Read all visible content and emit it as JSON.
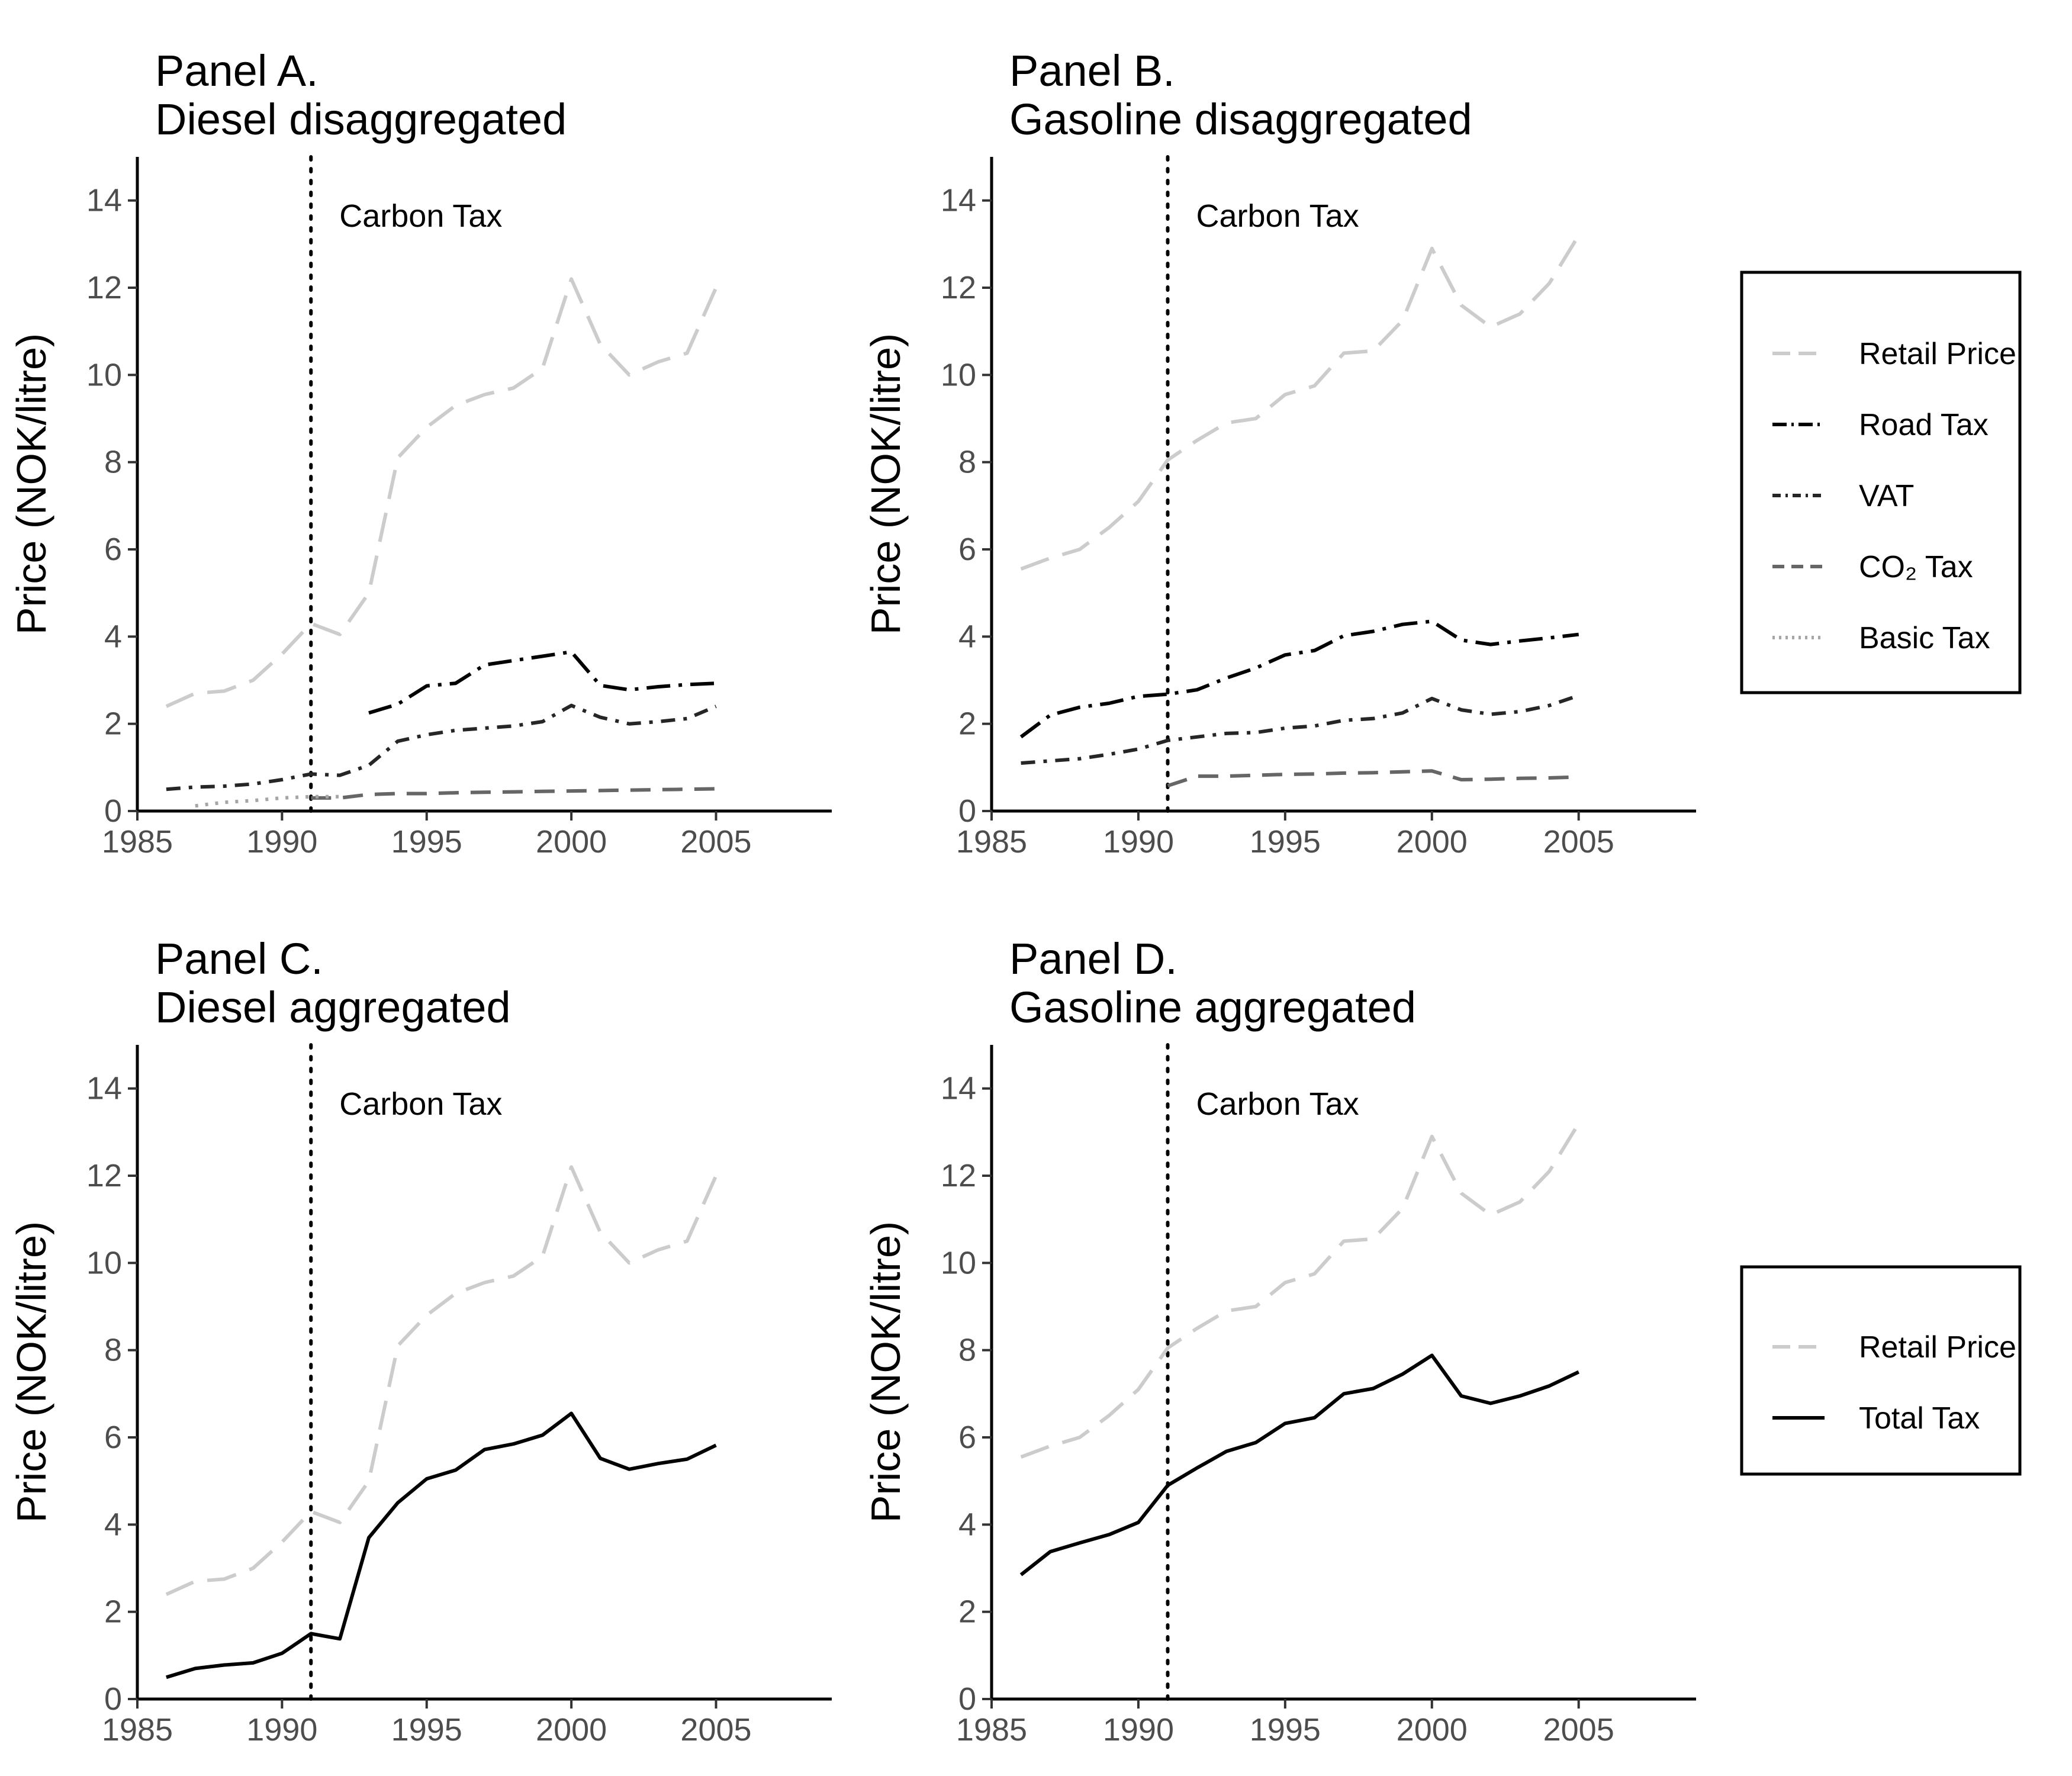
{
  "figure": {
    "panels": [
      {
        "id": "A",
        "title_line1": "Panel A.",
        "title_line2": "Diesel disaggregated"
      },
      {
        "id": "B",
        "title_line1": "Panel B.",
        "title_line2": "Gasoline disaggregated"
      },
      {
        "id": "C",
        "title_line1": "Panel C.",
        "title_line2": "Diesel aggregated"
      },
      {
        "id": "D",
        "title_line1": "Panel D.",
        "title_line2": "Gasoline aggregated"
      }
    ],
    "ylabel": "Price (NOK/litre)",
    "annotation": "Carbon Tax",
    "legend_top": [
      "Retail Price",
      "Road Tax",
      "VAT",
      "CO₂ Tax",
      "Basic Tax"
    ],
    "legend_bottom": [
      "Retail Price",
      "Total Tax"
    ]
  },
  "colors": {
    "retail_price": "#cccccc",
    "road_tax": "#000000",
    "vat": "#262626",
    "co2_tax": "#666666",
    "basic_tax": "#a6a6a6",
    "total_tax": "#000000"
  },
  "chart_data": [
    {
      "panel": "A",
      "type": "line",
      "xlim": [
        1985,
        2009
      ],
      "ylim": [
        0,
        15
      ],
      "xticks": [
        1985,
        1990,
        1995,
        2000,
        2005
      ],
      "yticks": [
        0,
        2,
        4,
        6,
        8,
        10,
        12,
        14
      ],
      "vline_x": 1991,
      "series": [
        {
          "name": "Retail Price",
          "style": "retail",
          "x": [
            1986,
            1987,
            1988,
            1989,
            1990,
            1991,
            1992,
            1993,
            1994,
            1995,
            1996,
            1997,
            1998,
            1999,
            2000,
            2001,
            2002,
            2003,
            2004,
            2005
          ],
          "y": [
            2.4,
            2.7,
            2.75,
            3.0,
            3.6,
            4.3,
            4.05,
            5.0,
            8.1,
            8.8,
            9.3,
            9.55,
            9.7,
            10.15,
            12.2,
            10.7,
            10.0,
            10.3,
            10.5,
            12.0
          ]
        },
        {
          "name": "Road Tax",
          "style": "road",
          "x": [
            1993,
            1994,
            1995,
            1996,
            1997,
            1998,
            1999,
            2000,
            2001,
            2002,
            2003,
            2004,
            2005
          ],
          "y": [
            2.25,
            2.45,
            2.87,
            2.93,
            3.35,
            3.45,
            3.55,
            3.65,
            2.88,
            2.78,
            2.85,
            2.9,
            2.93
          ]
        },
        {
          "name": "VAT",
          "style": "vat",
          "x": [
            1986,
            1987,
            1988,
            1989,
            1990,
            1991,
            1992,
            1993,
            1994,
            1995,
            1996,
            1997,
            1998,
            1999,
            2000,
            2001,
            2002,
            2003,
            2004,
            2005
          ],
          "y": [
            0.5,
            0.55,
            0.57,
            0.62,
            0.72,
            0.85,
            0.82,
            1.05,
            1.6,
            1.75,
            1.85,
            1.9,
            1.95,
            2.05,
            2.42,
            2.15,
            2.0,
            2.05,
            2.12,
            2.4
          ]
        },
        {
          "name": "CO₂ Tax",
          "style": "co2",
          "x": [
            1991,
            1992,
            1993,
            1994,
            1995,
            1996,
            1997,
            1998,
            1999,
            2000,
            2001,
            2002,
            2003,
            2004,
            2005
          ],
          "y": [
            0.3,
            0.3,
            0.38,
            0.4,
            0.4,
            0.42,
            0.43,
            0.44,
            0.45,
            0.46,
            0.47,
            0.48,
            0.49,
            0.5,
            0.51
          ]
        },
        {
          "name": "Basic Tax",
          "style": "basic",
          "x": [
            1987,
            1988,
            1989,
            1990,
            1991,
            1992
          ],
          "y": [
            0.12,
            0.2,
            0.24,
            0.3,
            0.33,
            0.33
          ]
        }
      ]
    },
    {
      "panel": "B",
      "type": "line",
      "xlim": [
        1985,
        2009
      ],
      "ylim": [
        0,
        15
      ],
      "xticks": [
        1985,
        1990,
        1995,
        2000,
        2005
      ],
      "yticks": [
        0,
        2,
        4,
        6,
        8,
        10,
        12,
        14
      ],
      "vline_x": 1991,
      "series": [
        {
          "name": "Retail Price",
          "style": "retail",
          "x": [
            1986,
            1987,
            1988,
            1989,
            1990,
            1991,
            1992,
            1993,
            1994,
            1995,
            1996,
            1997,
            1998,
            1999,
            2000,
            2001,
            2002,
            2003,
            2004,
            2005
          ],
          "y": [
            5.55,
            5.8,
            6.0,
            6.5,
            7.1,
            8.05,
            8.5,
            8.9,
            9.0,
            9.55,
            9.75,
            10.5,
            10.55,
            11.25,
            12.9,
            11.6,
            11.1,
            11.4,
            12.1,
            13.2
          ]
        },
        {
          "name": "Road Tax",
          "style": "road",
          "x": [
            1986,
            1987,
            1988,
            1989,
            1990,
            1991,
            1992,
            1993,
            1994,
            1995,
            1996,
            1997,
            1998,
            1999,
            2000,
            2001,
            2002,
            2003,
            2004,
            2005
          ],
          "y": [
            1.7,
            2.2,
            2.38,
            2.47,
            2.63,
            2.68,
            2.78,
            3.05,
            3.28,
            3.58,
            3.68,
            4.02,
            4.12,
            4.28,
            4.35,
            3.92,
            3.82,
            3.9,
            3.97,
            4.05
          ]
        },
        {
          "name": "VAT",
          "style": "vat",
          "x": [
            1986,
            1987,
            1988,
            1989,
            1990,
            1991,
            1992,
            1993,
            1994,
            1995,
            1996,
            1997,
            1998,
            1999,
            2000,
            2001,
            2002,
            2003,
            2004,
            2005
          ],
          "y": [
            1.1,
            1.15,
            1.2,
            1.3,
            1.42,
            1.62,
            1.7,
            1.78,
            1.8,
            1.9,
            1.95,
            2.08,
            2.12,
            2.25,
            2.58,
            2.32,
            2.22,
            2.28,
            2.42,
            2.65
          ]
        },
        {
          "name": "CO₂ Tax",
          "style": "co2",
          "x": [
            1991,
            1992,
            1993,
            1994,
            1995,
            1996,
            1997,
            1998,
            1999,
            2000,
            2001,
            2002,
            2003,
            2004,
            2005
          ],
          "y": [
            0.58,
            0.8,
            0.8,
            0.82,
            0.84,
            0.85,
            0.87,
            0.88,
            0.9,
            0.92,
            0.72,
            0.73,
            0.75,
            0.76,
            0.78
          ]
        }
      ]
    },
    {
      "panel": "C",
      "type": "line",
      "xlim": [
        1985,
        2009
      ],
      "ylim": [
        0,
        15
      ],
      "xticks": [
        1985,
        1990,
        1995,
        2000,
        2005
      ],
      "yticks": [
        0,
        2,
        4,
        6,
        8,
        10,
        12,
        14
      ],
      "vline_x": 1991,
      "series": [
        {
          "name": "Retail Price",
          "style": "retail",
          "x": [
            1986,
            1987,
            1988,
            1989,
            1990,
            1991,
            1992,
            1993,
            1994,
            1995,
            1996,
            1997,
            1998,
            1999,
            2000,
            2001,
            2002,
            2003,
            2004,
            2005
          ],
          "y": [
            2.4,
            2.7,
            2.75,
            3.0,
            3.6,
            4.3,
            4.05,
            5.0,
            8.1,
            8.8,
            9.3,
            9.55,
            9.7,
            10.15,
            12.2,
            10.7,
            10.0,
            10.3,
            10.5,
            12.0
          ]
        },
        {
          "name": "Total Tax",
          "style": "total",
          "x": [
            1986,
            1987,
            1988,
            1989,
            1990,
            1991,
            1992,
            1993,
            1994,
            1995,
            1996,
            1997,
            1998,
            1999,
            2000,
            2001,
            2002,
            2003,
            2004,
            2005
          ],
          "y": [
            0.5,
            0.7,
            0.78,
            0.83,
            1.05,
            1.5,
            1.38,
            3.7,
            4.5,
            5.05,
            5.25,
            5.72,
            5.85,
            6.05,
            6.55,
            5.52,
            5.27,
            5.4,
            5.5,
            5.82
          ]
        }
      ]
    },
    {
      "panel": "D",
      "type": "line",
      "xlim": [
        1985,
        2009
      ],
      "ylim": [
        0,
        15
      ],
      "xticks": [
        1985,
        1990,
        1995,
        2000,
        2005
      ],
      "yticks": [
        0,
        2,
        4,
        6,
        8,
        10,
        12,
        14
      ],
      "vline_x": 1991,
      "series": [
        {
          "name": "Retail Price",
          "style": "retail",
          "x": [
            1986,
            1987,
            1988,
            1989,
            1990,
            1991,
            1992,
            1993,
            1994,
            1995,
            1996,
            1997,
            1998,
            1999,
            2000,
            2001,
            2002,
            2003,
            2004,
            2005
          ],
          "y": [
            5.55,
            5.8,
            6.0,
            6.5,
            7.1,
            8.05,
            8.5,
            8.9,
            9.0,
            9.55,
            9.75,
            10.5,
            10.55,
            11.25,
            12.9,
            11.6,
            11.1,
            11.4,
            12.1,
            13.2
          ]
        },
        {
          "name": "Total Tax",
          "style": "total",
          "x": [
            1986,
            1987,
            1988,
            1989,
            1990,
            1991,
            1992,
            1993,
            1994,
            1995,
            1996,
            1997,
            1998,
            1999,
            2000,
            2001,
            2002,
            2003,
            2004,
            2005
          ],
          "y": [
            2.85,
            3.38,
            3.58,
            3.77,
            4.05,
            4.9,
            5.3,
            5.68,
            5.88,
            6.32,
            6.45,
            7.0,
            7.12,
            7.45,
            7.88,
            6.95,
            6.78,
            6.95,
            7.18,
            7.5
          ]
        }
      ]
    }
  ]
}
